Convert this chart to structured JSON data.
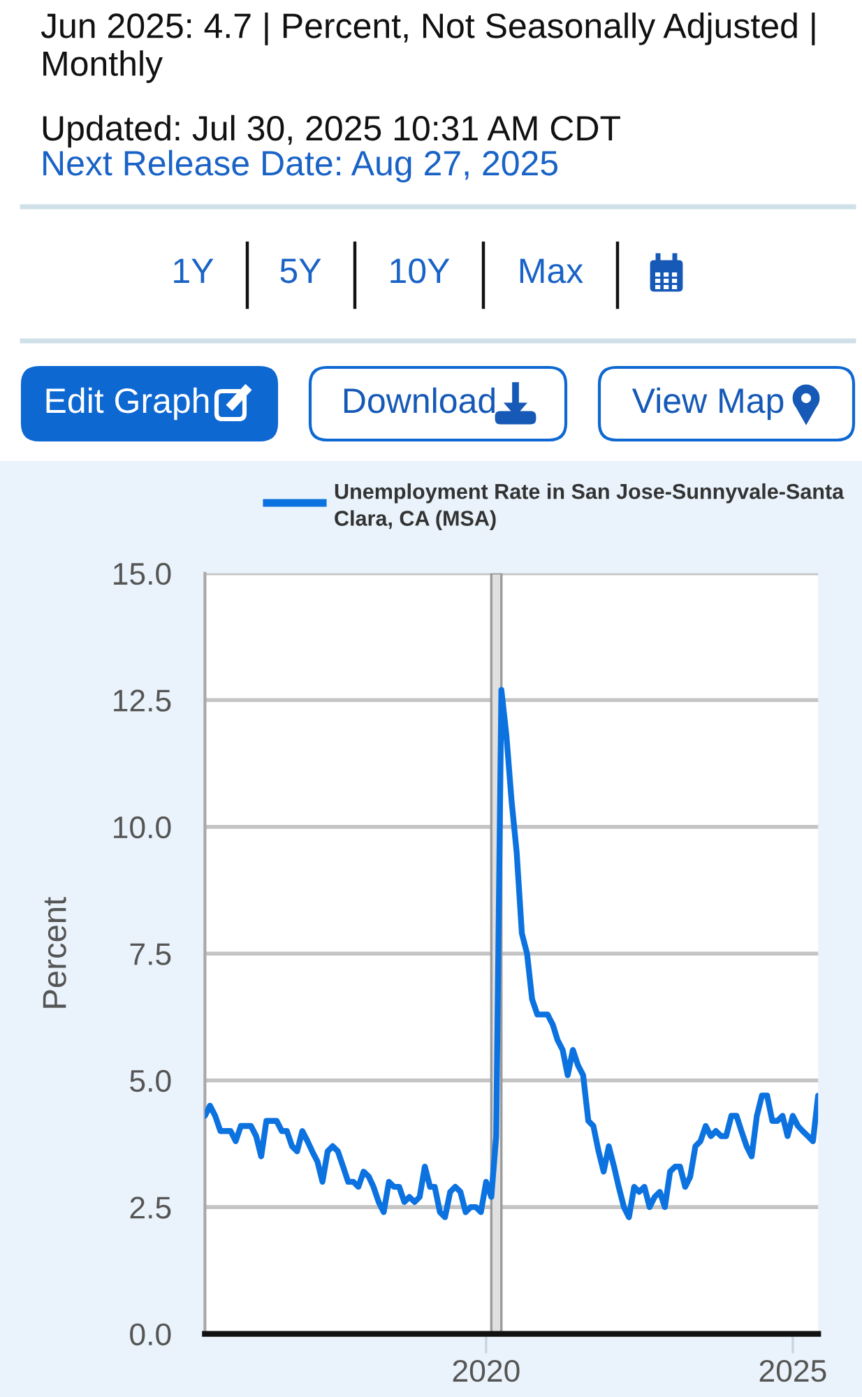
{
  "chart_data": {
    "type": "line",
    "annotations": [
      "Jun 2025: 4.7 | Percent, Not Seasonally Adjusted | Monthly",
      "Updated: Jul 30, 2025 10:31 AM CDT",
      "Next Release Date: Aug 27, 2025",
      "1Y",
      "5Y",
      "10Y",
      "Max",
      "Edit Graph",
      "Download",
      "View Map"
    ],
    "ylabel": "Percent",
    "x": [
      "2015-06",
      "2015-07",
      "2015-08",
      "2015-09",
      "2015-10",
      "2015-11",
      "2015-12",
      "2016-01",
      "2016-02",
      "2016-03",
      "2016-04",
      "2016-05",
      "2016-06",
      "2016-07",
      "2016-08",
      "2016-09",
      "2016-10",
      "2016-11",
      "2016-12",
      "2017-01",
      "2017-02",
      "2017-03",
      "2017-04",
      "2017-05",
      "2017-06",
      "2017-07",
      "2017-08",
      "2017-09",
      "2017-10",
      "2017-11",
      "2017-12",
      "2018-01",
      "2018-02",
      "2018-03",
      "2018-04",
      "2018-05",
      "2018-06",
      "2018-07",
      "2018-08",
      "2018-09",
      "2018-10",
      "2018-11",
      "2018-12",
      "2019-01",
      "2019-02",
      "2019-03",
      "2019-04",
      "2019-05",
      "2019-06",
      "2019-07",
      "2019-08",
      "2019-09",
      "2019-10",
      "2019-11",
      "2019-12",
      "2020-01",
      "2020-02",
      "2020-03",
      "2020-04",
      "2020-05",
      "2020-06",
      "2020-07",
      "2020-08",
      "2020-09",
      "2020-10",
      "2020-11",
      "2020-12",
      "2021-01",
      "2021-02",
      "2021-03",
      "2021-04",
      "2021-05",
      "2021-06",
      "2021-07",
      "2021-08",
      "2021-09",
      "2021-10",
      "2021-11",
      "2021-12",
      "2022-01",
      "2022-02",
      "2022-03",
      "2022-04",
      "2022-05",
      "2022-06",
      "2022-07",
      "2022-08",
      "2022-09",
      "2022-10",
      "2022-11",
      "2022-12",
      "2023-01",
      "2023-02",
      "2023-03",
      "2023-04",
      "2023-05",
      "2023-06",
      "2023-07",
      "2023-08",
      "2023-09",
      "2023-10",
      "2023-11",
      "2023-12",
      "2024-01",
      "2024-02",
      "2024-03",
      "2024-04",
      "2024-05",
      "2024-06",
      "2024-07",
      "2024-08",
      "2024-09",
      "2024-10",
      "2024-11",
      "2024-12",
      "2025-01",
      "2025-02",
      "2025-03",
      "2025-04",
      "2025-05",
      "2025-06"
    ],
    "series": [
      {
        "name": "Unemployment Rate in San Jose-Sunnyvale-Santa Clara, CA (MSA)",
        "color": "#0b72e0",
        "values": [
          4.3,
          4.5,
          4.3,
          4.0,
          4.0,
          4.0,
          3.8,
          4.1,
          4.1,
          4.1,
          3.9,
          3.5,
          4.2,
          4.2,
          4.2,
          4.0,
          4.0,
          3.7,
          3.6,
          4.0,
          3.8,
          3.6,
          3.4,
          3.0,
          3.6,
          3.7,
          3.6,
          3.3,
          3.0,
          3.0,
          2.9,
          3.2,
          3.1,
          2.9,
          2.6,
          2.4,
          3.0,
          2.9,
          2.9,
          2.6,
          2.7,
          2.6,
          2.7,
          3.3,
          2.9,
          2.9,
          2.4,
          2.3,
          2.8,
          2.9,
          2.8,
          2.4,
          2.5,
          2.5,
          2.4,
          3.0,
          2.7,
          3.9,
          12.7,
          11.8,
          10.5,
          9.5,
          7.9,
          7.5,
          6.6,
          6.3,
          6.3,
          6.3,
          6.1,
          5.8,
          5.6,
          5.1,
          5.6,
          5.3,
          5.1,
          4.2,
          4.1,
          3.6,
          3.2,
          3.7,
          3.3,
          2.9,
          2.5,
          2.3,
          2.9,
          2.8,
          2.9,
          2.5,
          2.7,
          2.8,
          2.5,
          3.2,
          3.3,
          3.3,
          2.9,
          3.1,
          3.7,
          3.8,
          4.1,
          3.9,
          4.0,
          3.9,
          3.9,
          4.3,
          4.3,
          4.0,
          3.7,
          3.5,
          4.3,
          4.7,
          4.7,
          4.2,
          4.2,
          4.3,
          3.9,
          4.3,
          4.1,
          4.0,
          3.9,
          3.8,
          4.7
        ]
      }
    ],
    "xlim": [
      "2015-06",
      "2025-06"
    ],
    "xticks": [
      {
        "value": "2020-01",
        "label": "2020"
      },
      {
        "value": "2025-01",
        "label": "2025"
      }
    ],
    "ylim": [
      0,
      15
    ],
    "yticks": [
      {
        "value": 0,
        "label": "0.0"
      },
      {
        "value": 2.5,
        "label": "2.5"
      },
      {
        "value": 5,
        "label": "5.0"
      },
      {
        "value": 7.5,
        "label": "7.5"
      },
      {
        "value": 10,
        "label": "10.0"
      },
      {
        "value": 12.5,
        "label": "12.5"
      },
      {
        "value": 15,
        "label": "15.0"
      }
    ],
    "bands": [
      {
        "axis": "x",
        "from": "2020-02",
        "to": "2020-04",
        "color": "#e0e0e0"
      }
    ],
    "grid": "y",
    "legend": "top"
  }
}
